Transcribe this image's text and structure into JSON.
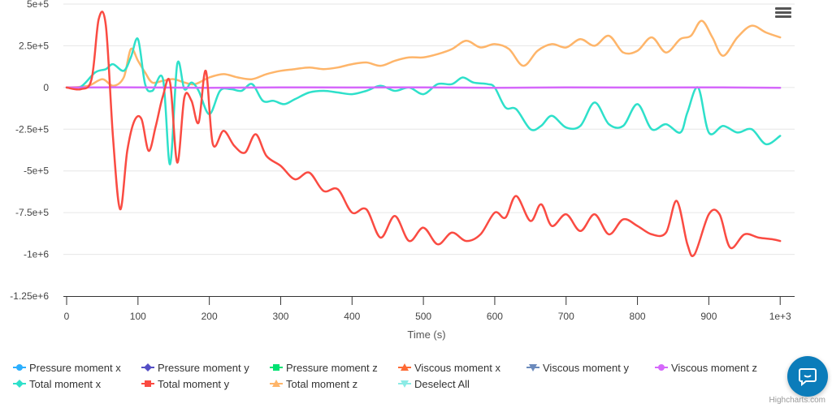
{
  "chart_data": {
    "type": "line",
    "xlabel": "Time (s)",
    "ylabel": "",
    "xlim": [
      0,
      1010
    ],
    "ylim": [
      -1250000,
      500000
    ],
    "x_ticks": [
      {
        "value": 0,
        "label": "0"
      },
      {
        "value": 100,
        "label": "100"
      },
      {
        "value": 200,
        "label": "200"
      },
      {
        "value": 300,
        "label": "300"
      },
      {
        "value": 400,
        "label": "400"
      },
      {
        "value": 500,
        "label": "500"
      },
      {
        "value": 600,
        "label": "600"
      },
      {
        "value": 700,
        "label": "700"
      },
      {
        "value": 800,
        "label": "800"
      },
      {
        "value": 900,
        "label": "900"
      },
      {
        "value": 1000,
        "label": "1e+3"
      }
    ],
    "y_ticks": [
      {
        "value": 500000,
        "label": "5e+5"
      },
      {
        "value": 250000,
        "label": "2.5e+5"
      },
      {
        "value": 0,
        "label": "0"
      },
      {
        "value": -250000,
        "label": "-2.5e+5"
      },
      {
        "value": -500000,
        "label": "-5e+5"
      },
      {
        "value": -750000,
        "label": "-7.5e+5"
      },
      {
        "value": -1000000,
        "label": "-1e+6"
      },
      {
        "value": -1250000,
        "label": "-1.25e+6"
      }
    ],
    "legend_position": "bottom",
    "series": [
      {
        "name": "Pressure moment x",
        "color": "#2caffe",
        "marker": "circle",
        "visible": false,
        "x": [],
        "y": []
      },
      {
        "name": "Pressure moment y",
        "color": "#544fc5",
        "marker": "diamond",
        "visible": false,
        "x": [],
        "y": []
      },
      {
        "name": "Pressure moment z",
        "color": "#00e272",
        "marker": "square",
        "visible": false,
        "x": [],
        "y": []
      },
      {
        "name": "Viscous moment x",
        "color": "#fe6a35",
        "marker": "triangle",
        "visible": false,
        "x": [],
        "y": []
      },
      {
        "name": "Viscous moment y",
        "color": "#6b8abc",
        "marker": "triangle-down",
        "visible": false,
        "x": [],
        "y": []
      },
      {
        "name": "Viscous moment z",
        "color": "#d568fb",
        "marker": "circle",
        "visible": true,
        "x": [
          0,
          100,
          200,
          300,
          400,
          500,
          600,
          700,
          800,
          900,
          1000
        ],
        "y": [
          0,
          1000,
          -2000,
          1000,
          0,
          1000,
          -2000,
          1000,
          0,
          1000,
          -2000
        ]
      },
      {
        "name": "Total moment x",
        "color": "#2ee0ca",
        "marker": "diamond",
        "visible": true,
        "x": [
          0,
          20,
          40,
          55,
          65,
          80,
          90,
          100,
          110,
          120,
          135,
          145,
          155,
          165,
          175,
          185,
          200,
          215,
          230,
          245,
          260,
          275,
          290,
          305,
          320,
          340,
          360,
          380,
          400,
          420,
          440,
          460,
          480,
          500,
          520,
          540,
          555,
          570,
          590,
          600,
          615,
          630,
          650,
          665,
          680,
          700,
          720,
          740,
          760,
          780,
          800,
          820,
          840,
          860,
          870,
          885,
          900,
          920,
          940,
          960,
          980,
          1000
        ],
        "y": [
          0,
          5000,
          90000,
          110000,
          140000,
          100000,
          180000,
          290000,
          20000,
          -20000,
          50000,
          -460000,
          140000,
          -10000,
          30000,
          -20000,
          -160000,
          -20000,
          -10000,
          -20000,
          20000,
          -80000,
          -80000,
          -100000,
          -70000,
          -30000,
          -20000,
          -30000,
          -40000,
          -20000,
          10000,
          -20000,
          0,
          -40000,
          20000,
          20000,
          60000,
          30000,
          20000,
          0,
          -120000,
          -130000,
          -250000,
          -230000,
          -170000,
          -240000,
          -230000,
          -90000,
          -220000,
          -230000,
          -100000,
          -250000,
          -220000,
          -270000,
          -150000,
          0,
          -270000,
          -230000,
          -270000,
          -250000,
          -340000,
          -290000
        ]
      },
      {
        "name": "Total moment y",
        "color": "#fa4b42",
        "marker": "square",
        "visible": true,
        "x": [
          0,
          20,
          35,
          45,
          55,
          65,
          75,
          85,
          95,
          105,
          115,
          125,
          135,
          145,
          155,
          165,
          175,
          185,
          195,
          205,
          220,
          235,
          250,
          265,
          280,
          300,
          320,
          340,
          360,
          380,
          400,
          420,
          440,
          460,
          480,
          500,
          520,
          540,
          560,
          580,
          600,
          615,
          630,
          650,
          665,
          680,
          700,
          720,
          740,
          760,
          780,
          800,
          820,
          840,
          855,
          870,
          880,
          900,
          915,
          930,
          950,
          970,
          990,
          1000
        ],
        "y": [
          0,
          -10000,
          50000,
          410000,
          370000,
          -300000,
          -730000,
          -380000,
          -200000,
          -190000,
          -380000,
          -230000,
          -50000,
          30000,
          -450000,
          -60000,
          -80000,
          -210000,
          100000,
          -340000,
          -260000,
          -350000,
          -390000,
          -280000,
          -410000,
          -470000,
          -550000,
          -510000,
          -620000,
          -610000,
          -750000,
          -730000,
          -900000,
          -770000,
          -920000,
          -840000,
          -940000,
          -870000,
          -920000,
          -880000,
          -750000,
          -780000,
          -650000,
          -800000,
          -700000,
          -830000,
          -760000,
          -860000,
          -760000,
          -880000,
          -790000,
          -830000,
          -880000,
          -870000,
          -680000,
          -940000,
          -1000000,
          -760000,
          -760000,
          -960000,
          -880000,
          -900000,
          -910000,
          -920000
        ]
      },
      {
        "name": "Total moment z",
        "color": "#feb56a",
        "marker": "triangle",
        "visible": true,
        "x": [
          0,
          30,
          50,
          65,
          80,
          90,
          100,
          110,
          120,
          135,
          150,
          165,
          180,
          200,
          220,
          240,
          260,
          280,
          300,
          320,
          340,
          360,
          380,
          400,
          420,
          440,
          460,
          480,
          500,
          520,
          540,
          560,
          580,
          600,
          620,
          640,
          660,
          680,
          700,
          720,
          740,
          760,
          780,
          800,
          820,
          840,
          860,
          875,
          890,
          905,
          920,
          940,
          960,
          980,
          1000
        ],
        "y": [
          0,
          10000,
          50000,
          10000,
          60000,
          230000,
          160000,
          90000,
          30000,
          40000,
          50000,
          30000,
          20000,
          60000,
          80000,
          60000,
          50000,
          80000,
          100000,
          110000,
          120000,
          110000,
          120000,
          140000,
          150000,
          130000,
          160000,
          180000,
          180000,
          200000,
          230000,
          280000,
          240000,
          260000,
          230000,
          130000,
          220000,
          260000,
          240000,
          290000,
          250000,
          310000,
          210000,
          220000,
          300000,
          210000,
          290000,
          310000,
          400000,
          300000,
          190000,
          300000,
          370000,
          330000,
          300000
        ]
      },
      {
        "name": "Deselect All",
        "color": "#8bebe5",
        "marker": "triangle-down",
        "visible": false,
        "x": [],
        "y": []
      }
    ]
  },
  "ui": {
    "credits": "Highcharts.com",
    "menu_icon": "hamburger-menu-icon",
    "chat_icon": "chat-bubble-icon",
    "chat_color": "#0b7cba",
    "grid_color": "#e6e6e6",
    "axis_color": "#333333"
  }
}
